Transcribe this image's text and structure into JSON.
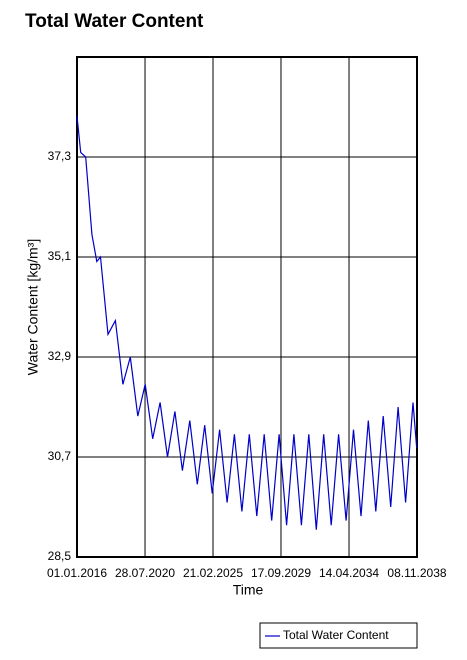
{
  "chart_data": {
    "type": "line",
    "title": "Total Water Content",
    "xlabel": "Time",
    "ylabel": "Water Content [kg/m³]",
    "x": [
      "01.01.2016",
      "01.04.2016",
      "01.08.2016",
      "01.01.2017",
      "01.05.2017",
      "01.08.2017",
      "01.02.2018",
      "01.08.2018",
      "01.02.2019",
      "01.08.2019",
      "01.02.2020",
      "01.08.2020",
      "01.02.2021",
      "01.08.2021",
      "01.02.2022",
      "01.08.2022",
      "01.02.2023",
      "01.08.2023",
      "01.02.2024",
      "01.08.2024",
      "01.02.2025",
      "01.08.2025",
      "01.02.2026",
      "01.08.2026",
      "01.02.2027",
      "01.08.2027",
      "01.02.2028",
      "01.08.2028",
      "01.02.2029",
      "01.08.2029",
      "01.02.2030",
      "01.08.2030",
      "01.02.2031",
      "01.08.2031",
      "01.02.2032",
      "01.08.2032",
      "01.02.2033",
      "01.08.2033",
      "01.02.2034",
      "01.08.2034",
      "01.02.2035",
      "01.08.2035",
      "01.02.2036",
      "01.08.2036",
      "01.02.2037",
      "01.08.2037",
      "01.02.2038",
      "01.08.2038",
      "01.11.2038"
    ],
    "series": [
      {
        "name": "Total Water Content",
        "color": "#0000c8",
        "values": [
          38.2,
          37.4,
          37.3,
          35.6,
          35.0,
          35.1,
          33.4,
          33.7,
          32.3,
          32.9,
          31.6,
          32.3,
          31.1,
          31.9,
          30.7,
          31.7,
          30.4,
          31.5,
          30.1,
          31.4,
          29.9,
          31.3,
          29.7,
          31.2,
          29.5,
          31.2,
          29.4,
          31.2,
          29.3,
          31.2,
          29.2,
          31.2,
          29.2,
          31.2,
          29.1,
          31.2,
          29.2,
          31.2,
          29.3,
          31.3,
          29.4,
          31.5,
          29.5,
          31.6,
          29.6,
          31.8,
          29.7,
          31.9,
          30.9
        ]
      }
    ],
    "xlim": [
      "01.01.2016",
      "08.11.2038"
    ],
    "xticks": [
      "01.01.2016",
      "28.07.2020",
      "21.02.2025",
      "17.09.2029",
      "14.04.2034",
      "08.11.2038"
    ],
    "ylim": [
      28.5,
      39.5
    ],
    "yticks": [
      {
        "value": 28.5,
        "label": "28,5"
      },
      {
        "value": 30.7,
        "label": "30,7"
      },
      {
        "value": 32.9,
        "label": "32,9"
      },
      {
        "value": 35.1,
        "label": "35,1"
      },
      {
        "value": 37.3,
        "label": "37,3"
      }
    ],
    "grid": true,
    "legend": "bottom-right"
  }
}
